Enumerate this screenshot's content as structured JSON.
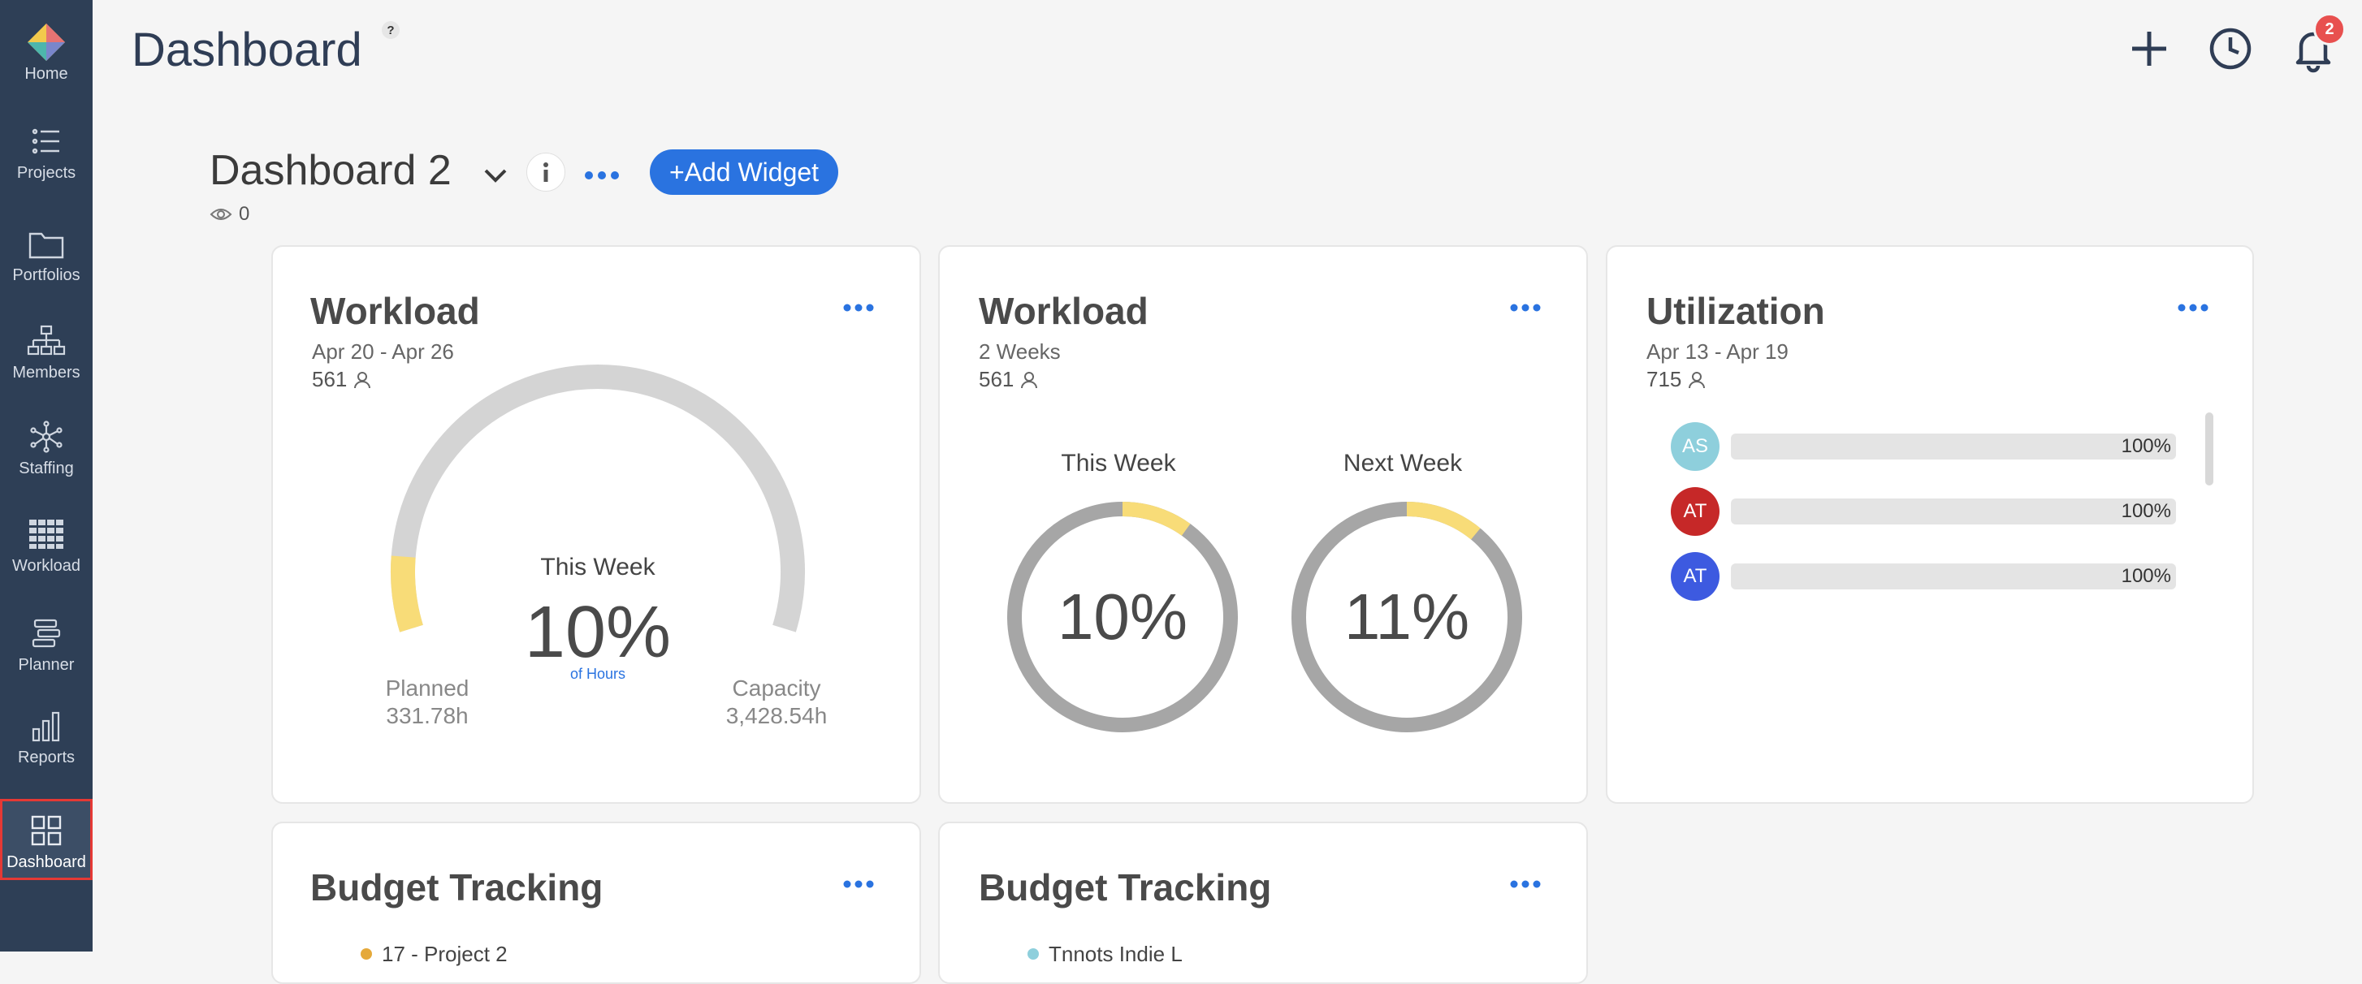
{
  "sidebar": {
    "items": [
      {
        "label": "Home",
        "icon": "home-logo-icon"
      },
      {
        "label": "Projects",
        "icon": "list-icon"
      },
      {
        "label": "Portfolios",
        "icon": "folder-icon"
      },
      {
        "label": "Members",
        "icon": "org-chart-icon"
      },
      {
        "label": "Staffing",
        "icon": "network-icon"
      },
      {
        "label": "Workload",
        "icon": "grid-icon"
      },
      {
        "label": "Planner",
        "icon": "planner-icon"
      },
      {
        "label": "Reports",
        "icon": "bar-chart-icon"
      },
      {
        "label": "Dashboard",
        "icon": "dashboard-icon",
        "active": true
      }
    ]
  },
  "header": {
    "title": "Dashboard",
    "help": "?",
    "notification_count": "2"
  },
  "dashboard": {
    "name": "Dashboard 2",
    "add_widget_label": "+Add Widget",
    "views": "0"
  },
  "widgets": {
    "workload1": {
      "title": "Workload",
      "range": "Apr 20 - Apr 26",
      "count": "561",
      "center_title": "This Week",
      "percent": "10%",
      "unit": "of Hours",
      "planned_label": "Planned",
      "planned_value": "331.78h",
      "capacity_label": "Capacity",
      "capacity_value": "3,428.54h",
      "fill_fraction": 0.1
    },
    "workload2": {
      "title": "Workload",
      "range": "2 Weeks",
      "count": "561",
      "this_week_label": "This Week",
      "this_week_pct": "10%",
      "this_week_fraction": 0.1,
      "next_week_label": "Next Week",
      "next_week_pct": "11%",
      "next_week_fraction": 0.11
    },
    "utilization": {
      "title": "Utilization",
      "range": "Apr 13 - Apr 19",
      "count": "715",
      "rows": [
        {
          "initials": "AS",
          "color": "#8ecfdc",
          "value": "100%"
        },
        {
          "initials": "AT",
          "color": "#c62828",
          "value": "100%"
        },
        {
          "initials": "AT",
          "color": "#3d5ae0",
          "value": "100%"
        }
      ]
    },
    "budget1": {
      "title": "Budget Tracking",
      "legend_item": "17 - Project 2",
      "legend_color": "#e5a93a"
    },
    "budget2": {
      "title": "Budget Tracking",
      "legend_item": "Tnnots Indie L",
      "legend_color": "#8ecfdc"
    }
  },
  "colors": {
    "sidebar": "#2e3f56",
    "accent": "#2a73e0",
    "ring_gray": "#a6a6a6",
    "ring_fill": "#f8dc78"
  }
}
